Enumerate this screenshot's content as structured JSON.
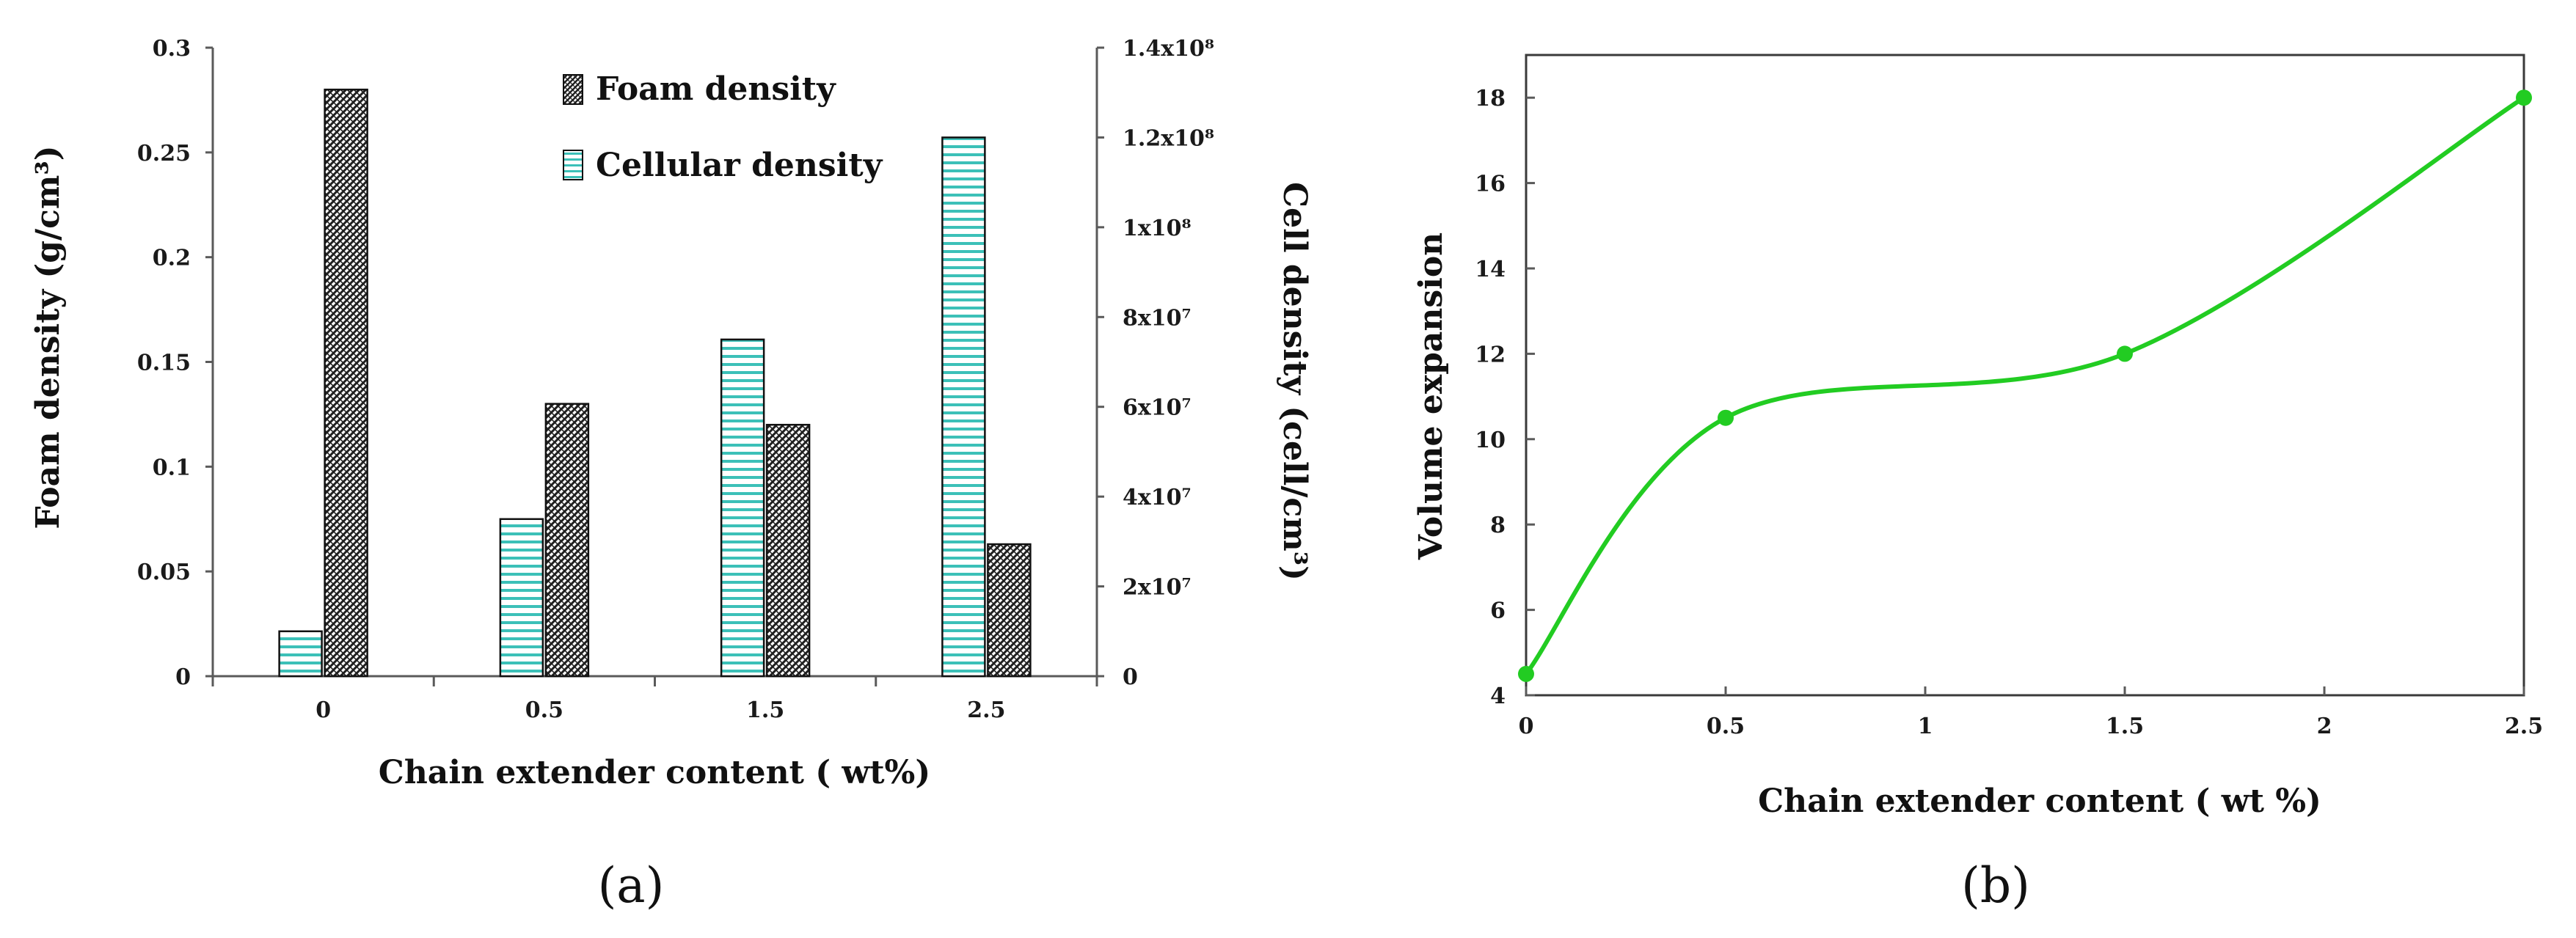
{
  "chart_data": [
    {
      "type": "bar",
      "panel_label": "(a)",
      "categories": [
        "0",
        "0.5",
        "1.5",
        "2.5"
      ],
      "xlabel": "Chain extender content ( wt%)",
      "ylabel_left": "Foam density (g/cm³)",
      "ylabel_right": "Cell density (cell/cm³)",
      "ylim_left": [
        0,
        0.3
      ],
      "yticks_left": [
        "0",
        "0.05",
        "0.1",
        "0.15",
        "0.2",
        "0.25",
        "0.3"
      ],
      "ylim_right": [
        0,
        140000000
      ],
      "yticks_right": [
        "0",
        "2x10⁷",
        "4x10⁷",
        "6x10⁷",
        "8x10⁷",
        "1x10⁸",
        "1.2x10⁸",
        "1.4x10⁸"
      ],
      "legend_position": "top-center",
      "series": [
        {
          "name": "Cellular density",
          "axis": "right",
          "pattern": "horizontal-stripes",
          "color": "#3cc0b8",
          "values": [
            10000000,
            35000000,
            75000000,
            120000000
          ]
        },
        {
          "name": "Foam density",
          "axis": "left",
          "pattern": "crosshatch",
          "color": "#2a2a2a",
          "values": [
            0.28,
            0.13,
            0.12,
            0.063
          ]
        }
      ]
    },
    {
      "type": "line",
      "panel_label": "(b)",
      "x": [
        0,
        0.5,
        1.5,
        2.5
      ],
      "y": [
        4.5,
        10.5,
        12,
        18
      ],
      "xlabel": "Chain extender content ( wt %)",
      "ylabel": "Volume expansion",
      "xlim": [
        0,
        2.5
      ],
      "ylim": [
        4,
        19
      ],
      "xticks": [
        "0",
        "0.5",
        "1",
        "1.5",
        "2",
        "2.5"
      ],
      "yticks": [
        "4",
        "6",
        "8",
        "10",
        "12",
        "14",
        "16",
        "18"
      ],
      "color": "#22cc22",
      "smooth": true
    }
  ]
}
